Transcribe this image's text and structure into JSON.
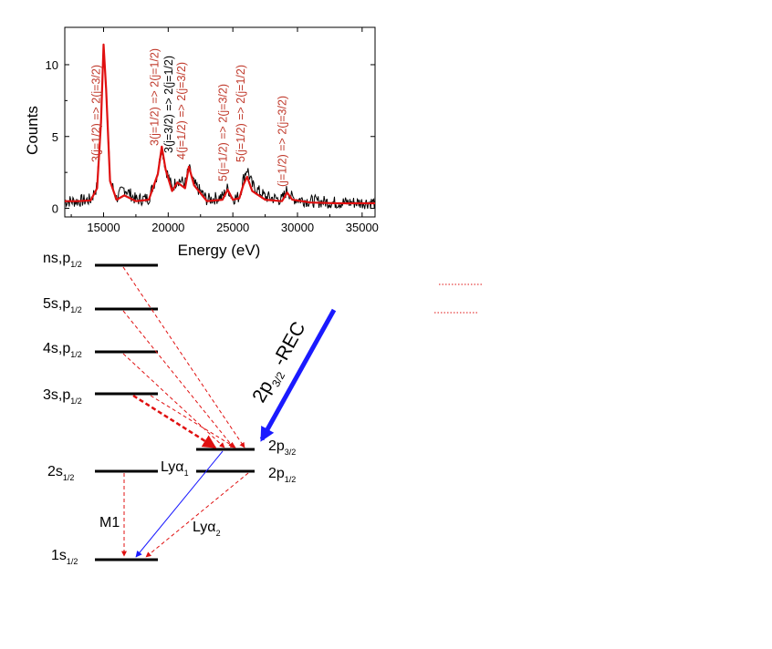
{
  "chart_data": {
    "type": "line",
    "xlabel": "Energy (eV)",
    "ylabel": "Counts",
    "xlim": [
      12000,
      36000
    ],
    "ylim": [
      -0.6,
      12.6
    ],
    "x_ticks": [
      15000,
      20000,
      25000,
      30000,
      35000
    ],
    "y_ticks": [
      0,
      5,
      10
    ],
    "series": [
      {
        "color": "#000000",
        "style": "measured-noisy",
        "x": [
          12000,
          13000,
          14000,
          14500,
          14800,
          15000,
          15200,
          15500,
          16000,
          16600,
          17500,
          18500,
          19200,
          19500,
          19800,
          20300,
          20700,
          21000,
          21300,
          21600,
          22000,
          23000,
          24200,
          24600,
          25000,
          25500,
          25800,
          26100,
          26500,
          27500,
          28800,
          29200,
          29600,
          31000,
          33000,
          36000
        ],
        "y": [
          0.5,
          0.5,
          0.6,
          1.5,
          6.0,
          11.3,
          8.5,
          2.0,
          0.7,
          1.4,
          0.6,
          0.7,
          2.5,
          4.3,
          2.8,
          1.4,
          2.0,
          1.9,
          1.7,
          2.8,
          1.7,
          0.6,
          0.8,
          1.4,
          0.7,
          0.8,
          2.0,
          2.8,
          1.6,
          0.8,
          0.6,
          1.3,
          0.7,
          0.5,
          0.4,
          0.4
        ]
      },
      {
        "color": "#e01010",
        "style": "fit",
        "x": [
          12000,
          13000,
          14000,
          14500,
          14800,
          15000,
          15200,
          15500,
          16000,
          16600,
          17500,
          18500,
          19200,
          19500,
          19800,
          20300,
          20700,
          21000,
          21300,
          21600,
          22000,
          23000,
          24200,
          24600,
          25000,
          25500,
          25800,
          26100,
          26500,
          27500,
          28800,
          29200,
          29600,
          31000,
          33000,
          36000
        ],
        "y": [
          0.5,
          0.5,
          0.55,
          1.4,
          6.0,
          11.4,
          8.3,
          1.9,
          0.6,
          0.9,
          0.5,
          0.6,
          2.4,
          4.3,
          2.7,
          1.2,
          1.8,
          1.6,
          1.4,
          2.9,
          1.6,
          0.5,
          0.6,
          1.3,
          0.6,
          0.7,
          1.6,
          2.2,
          1.2,
          0.6,
          0.5,
          1.1,
          0.6,
          0.4,
          0.35,
          0.35
        ]
      }
    ],
    "annotations": [
      {
        "x": 15000,
        "color": "#c0392b",
        "text": "3(j=1/2) => 2(j=3/2)"
      },
      {
        "x": 19500,
        "color": "#c0392b",
        "text": "3(j=1/2) => 2(j=1/2)"
      },
      {
        "x": 20600,
        "color": "#000000",
        "text": "3(j=3/2) => 2(j=1/2)"
      },
      {
        "x": 21600,
        "color": "#c0392b",
        "text": "4(j=1/2) => 2(j=3/2)"
      },
      {
        "x": 24800,
        "color": "#c0392b",
        "text": "5(j=1/2) => 2(j=3/2)"
      },
      {
        "x": 26200,
        "color": "#c0392b",
        "text": "5(j=1/2) => 2(j=1/2)"
      },
      {
        "x": 29400,
        "color": "#c0392b",
        "text": "(j=1/2) => 2(j=3/2)"
      }
    ]
  },
  "diagram": {
    "levels_left": [
      {
        "main": "ns,p",
        "sub": "1/2"
      },
      {
        "main": "5s,p",
        "sub": "1/2"
      },
      {
        "main": "4s,p",
        "sub": "1/2"
      },
      {
        "main": "3s,p",
        "sub": "1/2"
      },
      {
        "main": "2s",
        "sub": "1/2"
      },
      {
        "main": "1s",
        "sub": "1/2"
      }
    ],
    "levels_right": [
      {
        "main": "2p",
        "sub": "3/2"
      },
      {
        "main": "2p",
        "sub": "1/2"
      }
    ],
    "transition_labels": {
      "m1": "M1",
      "lya1_main": "Lyα",
      "lya1_sub": "1",
      "lya2_main": "Lyα",
      "lya2_sub": "2"
    },
    "rec_label": {
      "main": "2p",
      "sub": "3/2",
      "suffix": " -REC"
    }
  },
  "colors": {
    "red": "#e01010",
    "blue": "#1a1aff",
    "black": "#000000"
  }
}
